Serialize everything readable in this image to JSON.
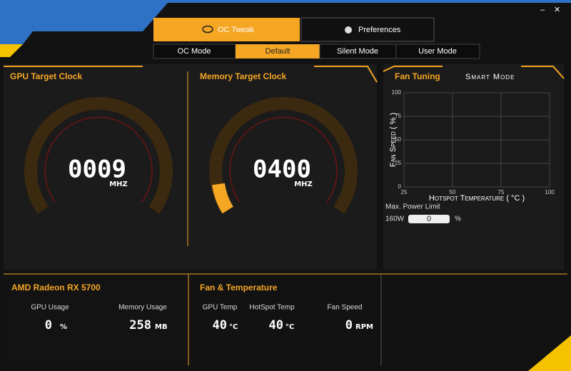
{
  "tabs": [
    "OC Tweak",
    "Preferences"
  ],
  "modes": [
    "OC Mode",
    "Default",
    "Silent Mode",
    "User Mode"
  ],
  "gpu_clock": {
    "title": "GPU Target Clock",
    "value": "0009",
    "unit": "MHZ"
  },
  "memory_clock": {
    "title": "Memory Target Clock",
    "value": "0400",
    "unit": "MHZ"
  },
  "fan_tuning": {
    "title": "Fan Tuning",
    "mode": "Smart Mode",
    "chart": {
      "y_label": "Fan Speed ( % )",
      "x_label": "Hotspot Temperature ( °C )",
      "xlim": [
        25,
        100
      ],
      "ylim": [
        0,
        100
      ],
      "xticks": [
        25,
        50,
        75,
        100
      ],
      "yticks": [
        0,
        25,
        50,
        75,
        100
      ]
    },
    "power_limit": {
      "label": "Max. Power Limit",
      "watts": "160W",
      "value": "0",
      "unit": "%"
    }
  },
  "gpu_info": {
    "title": "AMD Radeon RX 5700",
    "stats": [
      {
        "label": "GPU Usage",
        "value": "0",
        "unit": "%"
      },
      {
        "label": "Memory Usage",
        "value": "258",
        "unit": "MB"
      }
    ]
  },
  "fan_temp": {
    "title": "Fan & Temperature",
    "stats": [
      {
        "label": "GPU Temp",
        "value": "40",
        "unit": "°C"
      },
      {
        "label": "HotSpot Temp",
        "value": "40",
        "unit": "°C"
      },
      {
        "label": "Fan Speed",
        "value": "0",
        "unit": "RPM"
      }
    ]
  }
}
